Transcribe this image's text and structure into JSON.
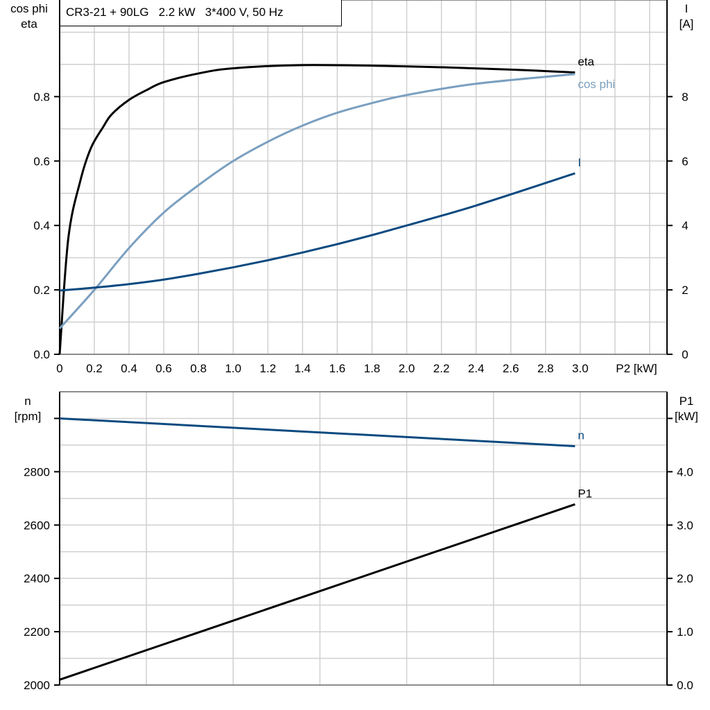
{
  "title": "CR3-21 + 90LG   2.2 kW   3*400 V, 50 Hz",
  "chart_data": [
    {
      "type": "line",
      "xlabel": "P2 [kW]",
      "xlim": [
        0,
        3.5
      ],
      "xticks": [
        "0",
        "0.2",
        "0.4",
        "0.6",
        "0.8",
        "1.0",
        "1.2",
        "1.4",
        "1.6",
        "1.8",
        "2.0",
        "2.2",
        "2.4",
        "2.6",
        "2.8",
        "3.0"
      ],
      "ylabel_left": [
        "cos phi",
        "eta"
      ],
      "ylim_left": [
        0,
        1.1
      ],
      "yticks_left": [
        "0.0",
        "0.2",
        "0.4",
        "0.6",
        "0.8"
      ],
      "ylabel_right": [
        "I",
        "[A]"
      ],
      "ylim_right": [
        0,
        11
      ],
      "yticks_right": [
        "0",
        "2",
        "4",
        "6",
        "8"
      ],
      "grid": true,
      "series": [
        {
          "name": "eta",
          "axis": "left",
          "color": "#000000",
          "x": [
            0,
            0.05,
            0.12,
            0.18,
            0.25,
            0.3,
            0.4,
            0.5,
            0.6,
            0.8,
            1.0,
            1.4,
            2.0,
            2.6,
            2.97
          ],
          "y": [
            0,
            0.36,
            0.54,
            0.64,
            0.705,
            0.745,
            0.79,
            0.82,
            0.845,
            0.872,
            0.888,
            0.898,
            0.894,
            0.884,
            0.875
          ]
        },
        {
          "name": "cos phi",
          "axis": "left",
          "color": "#7a9fc0",
          "x": [
            0,
            0.2,
            0.4,
            0.6,
            0.8,
            1.0,
            1.2,
            1.4,
            1.6,
            1.8,
            2.0,
            2.4,
            2.97
          ],
          "y": [
            0.08,
            0.2,
            0.33,
            0.44,
            0.525,
            0.6,
            0.66,
            0.71,
            0.75,
            0.78,
            0.805,
            0.84,
            0.87
          ]
        },
        {
          "name": "I",
          "axis": "right",
          "color": "#0b4a80",
          "x": [
            0,
            0.2,
            0.4,
            0.6,
            0.8,
            1.0,
            1.2,
            1.4,
            1.6,
            1.8,
            2.0,
            2.4,
            2.97
          ],
          "y": [
            1.98,
            2.07,
            2.18,
            2.32,
            2.5,
            2.7,
            2.92,
            3.16,
            3.42,
            3.7,
            4.0,
            4.62,
            5.62
          ]
        }
      ]
    },
    {
      "type": "line",
      "xlim": [
        0,
        3.5
      ],
      "ylabel_left": [
        "n",
        "[rpm]"
      ],
      "ylim_left": [
        2000,
        3100
      ],
      "yticks_left": [
        "2000",
        "2200",
        "2400",
        "2600",
        "2800"
      ],
      "ylabel_right": [
        "P1",
        "[kW]"
      ],
      "ylim_right": [
        0,
        5.5
      ],
      "yticks_right": [
        "0.0",
        "1.0",
        "2.0",
        "3.0",
        "4.0"
      ],
      "grid": true,
      "series": [
        {
          "name": "n",
          "axis": "left",
          "color": "#0b4a80",
          "x": [
            0,
            2.97
          ],
          "y": [
            3000,
            2896
          ]
        },
        {
          "name": "P1",
          "axis": "right",
          "color": "#000000",
          "x": [
            0,
            2.97
          ],
          "y": [
            0.1,
            3.39
          ]
        }
      ]
    }
  ]
}
